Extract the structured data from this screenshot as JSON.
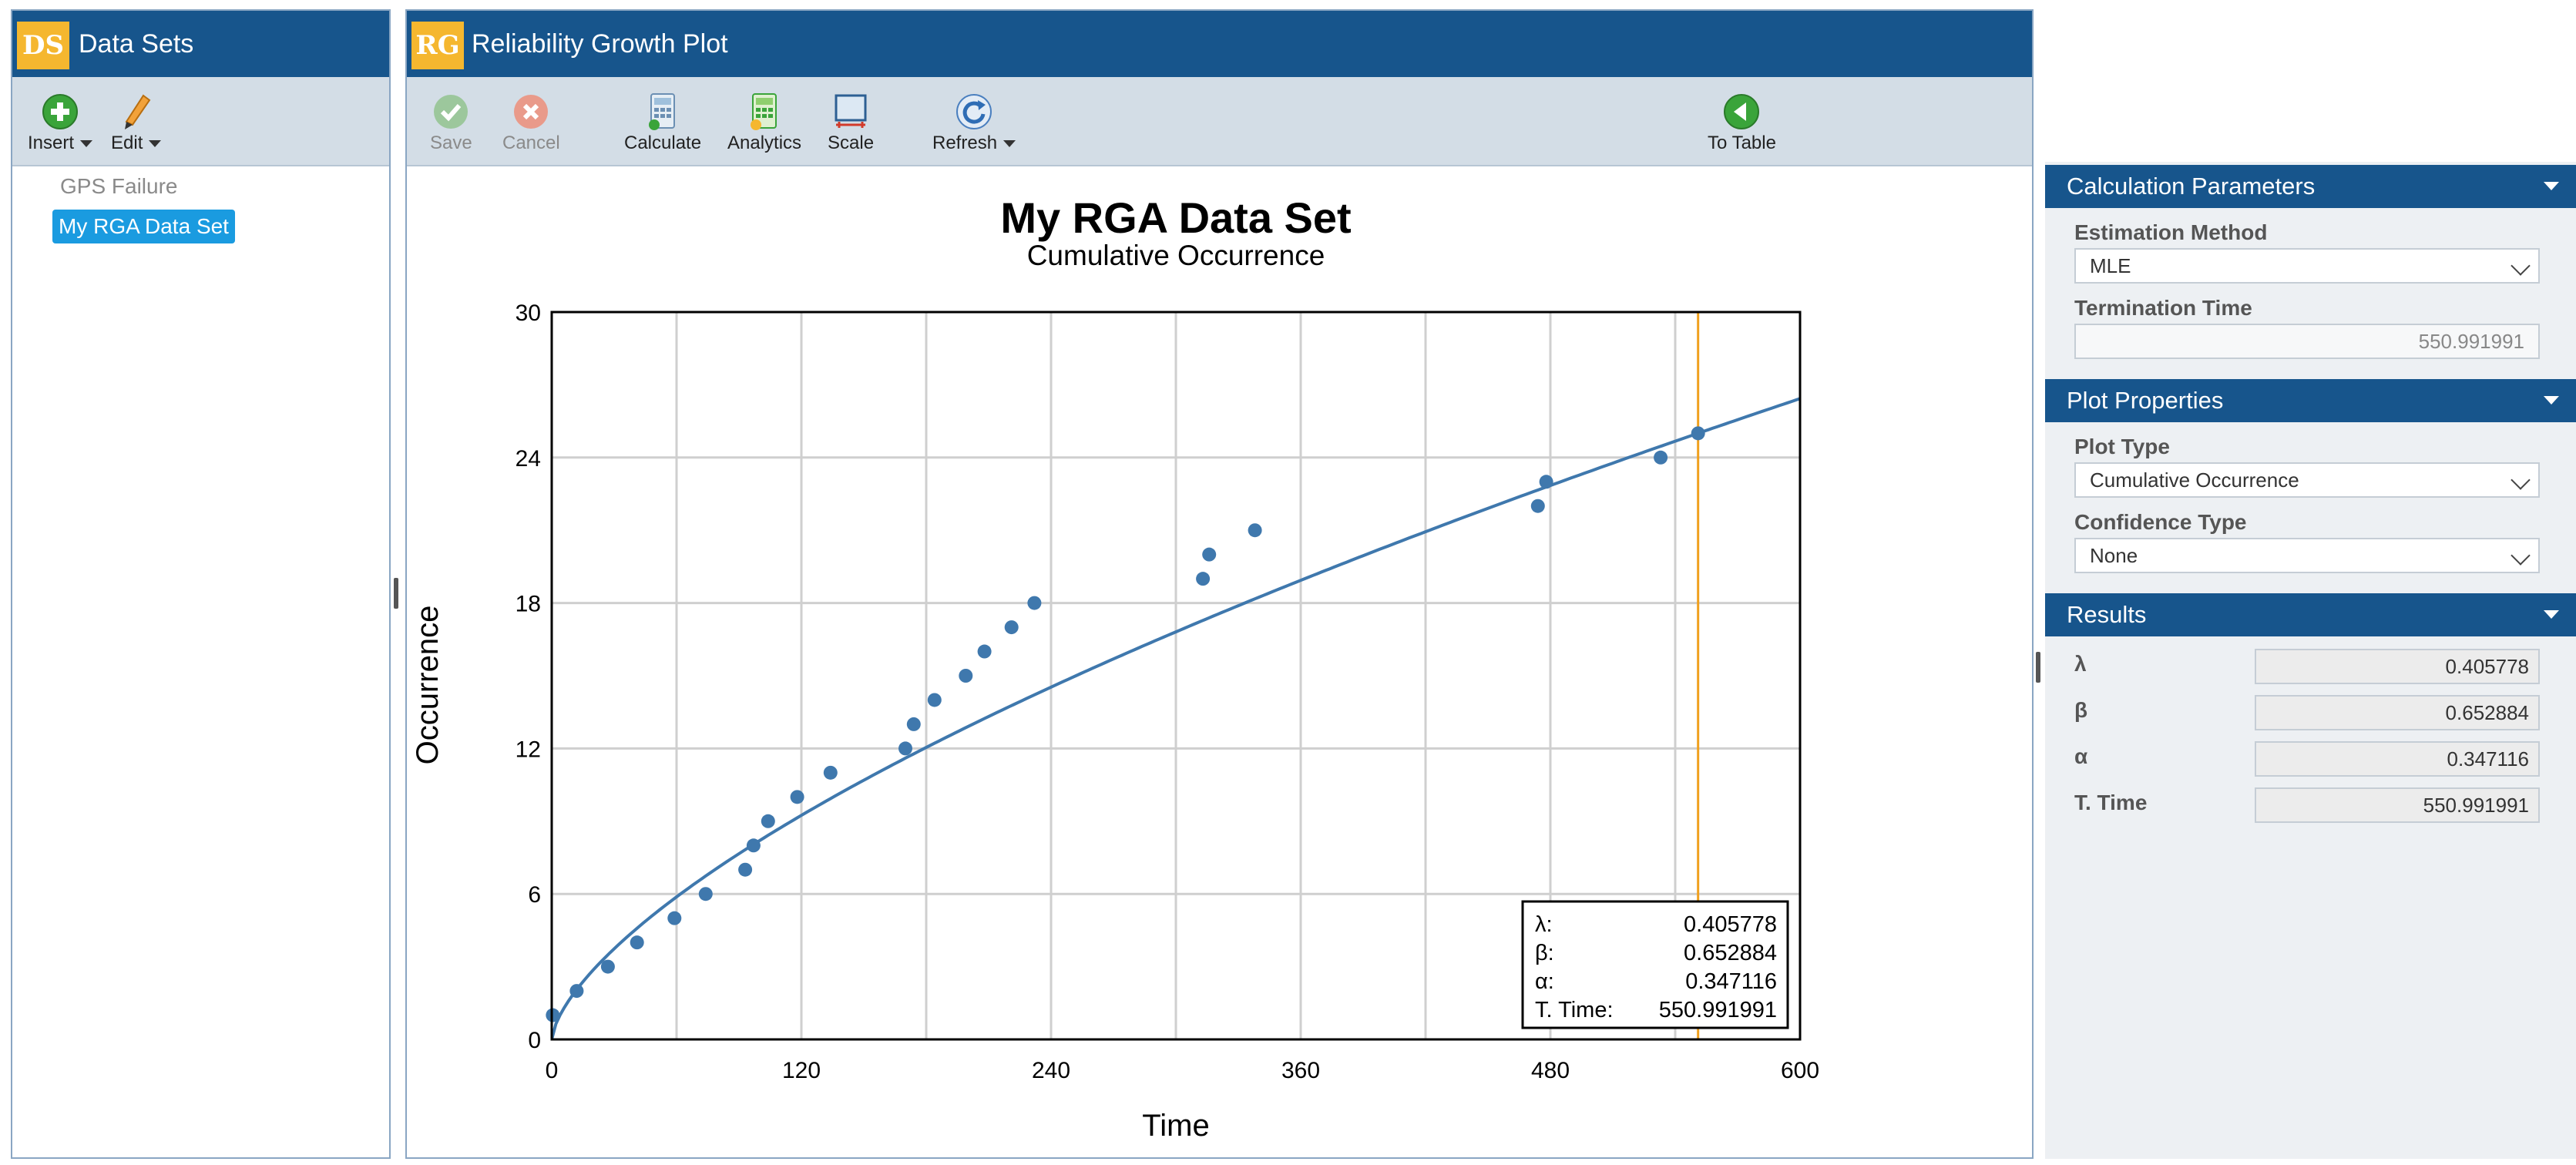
{
  "left_panel": {
    "badge": "DS",
    "title": "Data Sets",
    "toolbar": {
      "insert_label": "Insert",
      "edit_label": "Edit"
    },
    "items": [
      {
        "label": "GPS Failure",
        "active": false
      },
      {
        "label": "My RGA Data Set",
        "active": true
      }
    ]
  },
  "center_panel": {
    "badge": "RG",
    "title": "Reliability Growth Plot",
    "toolbar": {
      "save_label": "Save",
      "cancel_label": "Cancel",
      "calculate_label": "Calculate",
      "analytics_label": "Analytics",
      "scale_label": "Scale",
      "refresh_label": "Refresh",
      "to_table_label": "To Table"
    }
  },
  "right_panel": {
    "calc_params": {
      "header": "Calculation Parameters",
      "estimation_method_label": "Estimation Method",
      "estimation_method_value": "MLE",
      "termination_time_label": "Termination Time",
      "termination_time_value": "550.991991"
    },
    "plot_props": {
      "header": "Plot Properties",
      "plot_type_label": "Plot Type",
      "plot_type_value": "Cumulative Occurrence",
      "confidence_type_label": "Confidence Type",
      "confidence_type_value": "None"
    },
    "results": {
      "header": "Results",
      "lambda_label": "λ",
      "lambda_value": "0.405778",
      "beta_label": "β",
      "beta_value": "0.652884",
      "alpha_label": "α",
      "alpha_value": "0.347116",
      "ttime_label": "T. Time",
      "ttime_value": "550.991991"
    }
  },
  "colors": {
    "header_blue": "#17558c",
    "badge_gold": "#f5b72f",
    "selection_blue": "#1a9be0",
    "series_blue": "#3f78ad",
    "termination_line": "#f0a01e"
  },
  "chart_data": {
    "type": "scatter",
    "title": "My RGA Data Set",
    "subtitle": "Cumulative Occurrence",
    "xlabel": "Time",
    "ylabel": "Occurrence",
    "xlim": [
      0,
      600
    ],
    "ylim": [
      0,
      30
    ],
    "xticks": [
      0,
      120,
      240,
      360,
      480,
      600
    ],
    "yticks": [
      0,
      6,
      12,
      18,
      24,
      30
    ],
    "x_minor_step": 60,
    "grid": true,
    "points": [
      [
        0.5,
        1
      ],
      [
        12,
        2
      ],
      [
        27,
        3
      ],
      [
        41,
        4
      ],
      [
        59,
        5
      ],
      [
        74,
        6
      ],
      [
        93,
        7
      ],
      [
        97,
        8
      ],
      [
        104,
        9
      ],
      [
        118,
        10
      ],
      [
        134,
        11
      ],
      [
        170,
        12
      ],
      [
        174,
        13
      ],
      [
        184,
        14
      ],
      [
        199,
        15
      ],
      [
        208,
        16
      ],
      [
        221,
        17
      ],
      [
        232,
        18
      ],
      [
        313,
        19
      ],
      [
        316,
        20
      ],
      [
        338,
        21
      ],
      [
        474,
        22
      ],
      [
        478,
        23
      ],
      [
        533,
        24
      ],
      [
        551,
        25
      ]
    ],
    "fit": {
      "type": "power_law",
      "lambda": 0.405778,
      "beta": 0.652884
    },
    "termination_time": 550.991991,
    "legend": {
      "placement": "bottom-right",
      "rows": [
        {
          "label": "λ:",
          "value": "0.405778"
        },
        {
          "label": "β:",
          "value": "0.652884"
        },
        {
          "label": "α:",
          "value": "0.347116"
        },
        {
          "label": "T. Time:",
          "value": "550.991991"
        }
      ]
    }
  }
}
